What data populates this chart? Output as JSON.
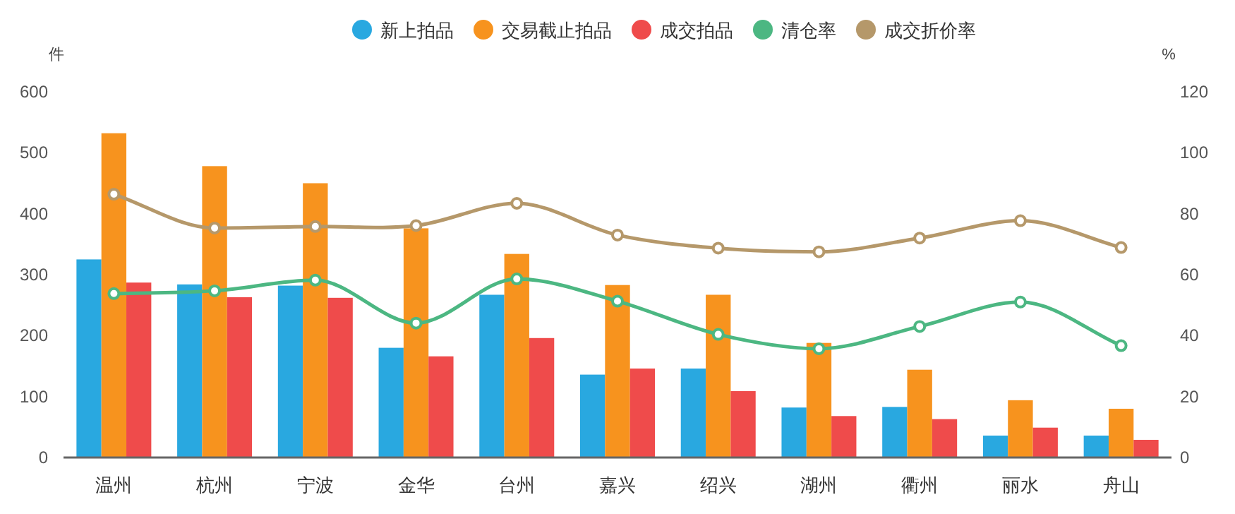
{
  "chart_data": {
    "type": "bar",
    "ylabel": "件",
    "y2label": "%",
    "categories": [
      "温州",
      "杭州",
      "宁波",
      "金华",
      "台州",
      "嘉兴",
      "绍兴",
      "湖州",
      "衢州",
      "丽水",
      "舟山"
    ],
    "series": [
      {
        "name": "新上拍品",
        "color": "#29a8e0",
        "values": [
          325,
          284,
          282,
          180,
          267,
          136,
          146,
          82,
          83,
          36,
          36
        ]
      },
      {
        "name": "交易截止拍品",
        "color": "#f7931e",
        "values": [
          532,
          478,
          450,
          376,
          334,
          283,
          267,
          188,
          144,
          94,
          80
        ]
      },
      {
        "name": "成交拍品",
        "color": "#ef4b4b",
        "values": [
          287,
          263,
          262,
          166,
          196,
          146,
          109,
          68,
          63,
          49,
          29
        ]
      },
      {
        "name": "清仓率",
        "type": "line",
        "axis": "y2",
        "color": "#4cb782",
        "values": [
          53.8,
          54.7,
          58.2,
          44.1,
          58.6,
          51.3,
          40.4,
          35.7,
          43.0,
          51.0,
          36.7
        ]
      },
      {
        "name": "成交折价率",
        "type": "line",
        "axis": "y2",
        "color": "#b5986a",
        "values": [
          86.4,
          75.3,
          75.8,
          76.1,
          83.4,
          73.0,
          68.7,
          67.5,
          72.0,
          77.7,
          68.9
        ]
      }
    ],
    "ylim": [
      0,
      600
    ],
    "yticks": [
      0,
      100,
      200,
      300,
      400,
      500,
      600
    ],
    "y2lim": [
      0,
      120
    ],
    "y2ticks": [
      0,
      20,
      40,
      60,
      80,
      100,
      120
    ],
    "marker": "circle",
    "line_style": "solid",
    "grid": false,
    "legend": "top"
  }
}
